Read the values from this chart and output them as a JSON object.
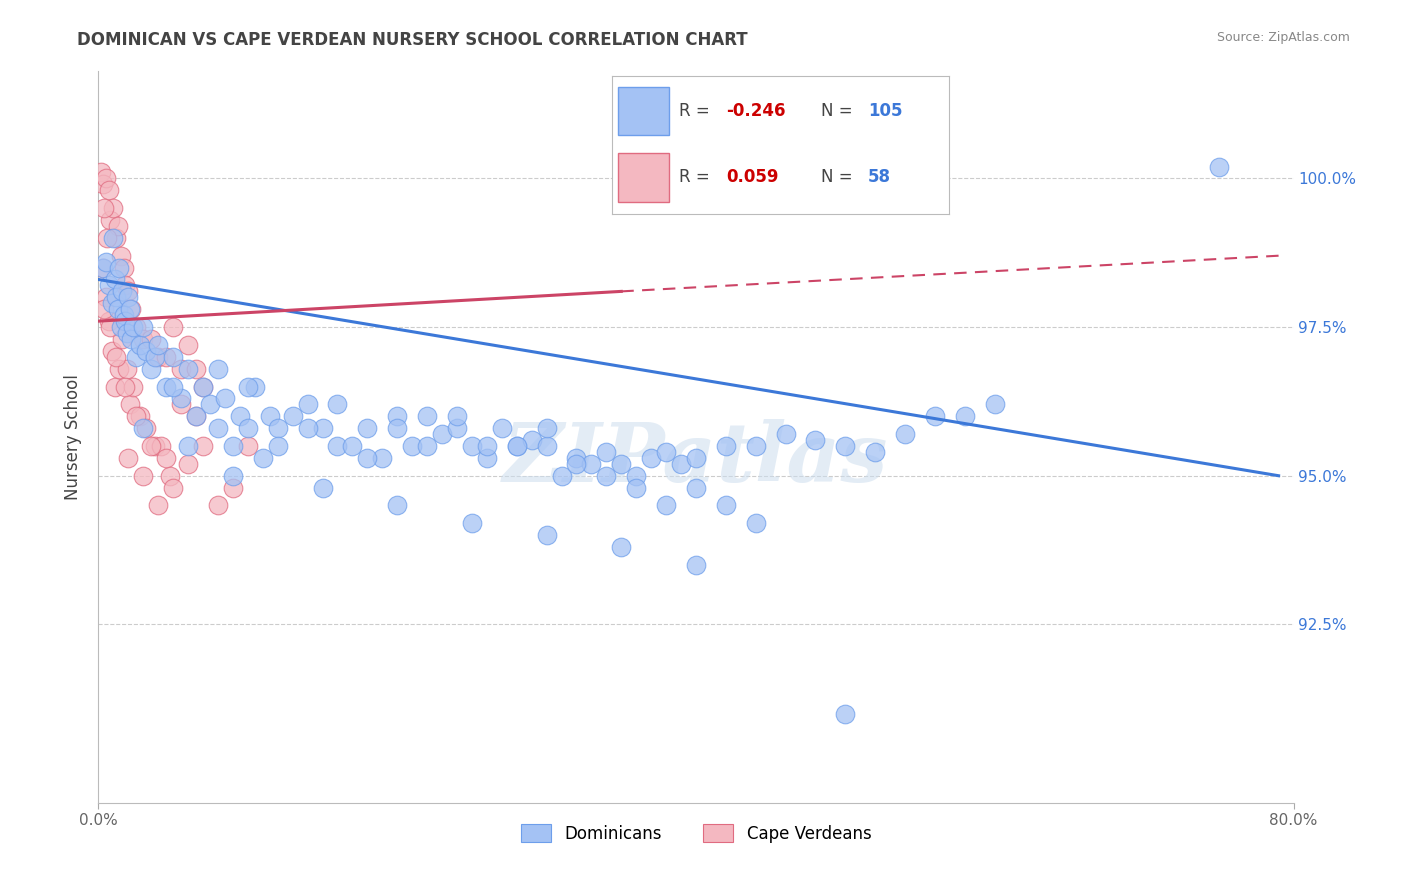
{
  "title": "DOMINICAN VS CAPE VERDEAN NURSERY SCHOOL CORRELATION CHART",
  "source": "Source: ZipAtlas.com",
  "xlabel_blue": "Dominicans",
  "xlabel_pink": "Cape Verdeans",
  "ylabel": "Nursery School",
  "x_min": 0.0,
  "x_max": 80.0,
  "y_min": 89.5,
  "y_max": 101.8,
  "y_ticks": [
    92.5,
    95.0,
    97.5,
    100.0
  ],
  "y_tick_labels": [
    "92.5%",
    "95.0%",
    "97.5%",
    "100.0%"
  ],
  "x_tick_labels": [
    "0.0%",
    "80.0%"
  ],
  "legend_R_blue": "-0.246",
  "legend_N_blue": "105",
  "legend_R_pink": "0.059",
  "legend_N_pink": "58",
  "blue_color": "#a4c2f4",
  "pink_color": "#f4b8c1",
  "blue_edge": "#6d9eeb",
  "pink_edge": "#e06b80",
  "trend_blue_color": "#3c78d8",
  "trend_pink_color": "#cc4466",
  "watermark": "ZIPatlas",
  "blue_trend_x0": 0.0,
  "blue_trend_y0": 98.3,
  "blue_trend_x1": 79.0,
  "blue_trend_y1": 95.0,
  "pink_solid_x0": 0.0,
  "pink_solid_y0": 97.6,
  "pink_solid_x1": 35.0,
  "pink_solid_y1": 98.1,
  "pink_dash_x0": 35.0,
  "pink_dash_y0": 98.1,
  "pink_dash_x1": 79.0,
  "pink_dash_y1": 98.7,
  "blue_dots": [
    [
      0.3,
      98.5
    ],
    [
      0.5,
      98.6
    ],
    [
      0.7,
      98.2
    ],
    [
      0.9,
      97.9
    ],
    [
      1.0,
      99.0
    ],
    [
      1.1,
      98.3
    ],
    [
      1.2,
      98.0
    ],
    [
      1.3,
      97.8
    ],
    [
      1.4,
      98.5
    ],
    [
      1.5,
      97.5
    ],
    [
      1.6,
      98.1
    ],
    [
      1.7,
      97.7
    ],
    [
      1.8,
      97.6
    ],
    [
      1.9,
      97.4
    ],
    [
      2.0,
      98.0
    ],
    [
      2.1,
      97.8
    ],
    [
      2.2,
      97.3
    ],
    [
      2.3,
      97.5
    ],
    [
      2.5,
      97.0
    ],
    [
      2.8,
      97.2
    ],
    [
      3.0,
      97.5
    ],
    [
      3.2,
      97.1
    ],
    [
      3.5,
      96.8
    ],
    [
      3.8,
      97.0
    ],
    [
      4.0,
      97.2
    ],
    [
      4.5,
      96.5
    ],
    [
      5.0,
      97.0
    ],
    [
      5.5,
      96.3
    ],
    [
      6.0,
      96.8
    ],
    [
      6.5,
      96.0
    ],
    [
      7.0,
      96.5
    ],
    [
      7.5,
      96.2
    ],
    [
      8.0,
      95.8
    ],
    [
      8.5,
      96.3
    ],
    [
      9.0,
      95.5
    ],
    [
      9.5,
      96.0
    ],
    [
      10.0,
      95.8
    ],
    [
      10.5,
      96.5
    ],
    [
      11.0,
      95.3
    ],
    [
      11.5,
      96.0
    ],
    [
      12.0,
      95.8
    ],
    [
      13.0,
      96.0
    ],
    [
      14.0,
      96.2
    ],
    [
      15.0,
      95.8
    ],
    [
      16.0,
      95.5
    ],
    [
      17.0,
      95.5
    ],
    [
      18.0,
      95.8
    ],
    [
      19.0,
      95.3
    ],
    [
      20.0,
      96.0
    ],
    [
      21.0,
      95.5
    ],
    [
      22.0,
      96.0
    ],
    [
      23.0,
      95.7
    ],
    [
      24.0,
      95.8
    ],
    [
      25.0,
      95.5
    ],
    [
      26.0,
      95.3
    ],
    [
      27.0,
      95.8
    ],
    [
      28.0,
      95.5
    ],
    [
      29.0,
      95.6
    ],
    [
      30.0,
      95.5
    ],
    [
      31.0,
      95.0
    ],
    [
      32.0,
      95.3
    ],
    [
      33.0,
      95.2
    ],
    [
      34.0,
      95.4
    ],
    [
      35.0,
      95.2
    ],
    [
      36.0,
      95.0
    ],
    [
      37.0,
      95.3
    ],
    [
      38.0,
      95.4
    ],
    [
      39.0,
      95.2
    ],
    [
      40.0,
      95.3
    ],
    [
      42.0,
      95.5
    ],
    [
      44.0,
      95.5
    ],
    [
      46.0,
      95.7
    ],
    [
      48.0,
      95.6
    ],
    [
      50.0,
      95.5
    ],
    [
      52.0,
      95.4
    ],
    [
      54.0,
      95.7
    ],
    [
      56.0,
      96.0
    ],
    [
      58.0,
      96.0
    ],
    [
      60.0,
      96.2
    ],
    [
      5.0,
      96.5
    ],
    [
      8.0,
      96.8
    ],
    [
      10.0,
      96.5
    ],
    [
      12.0,
      95.5
    ],
    [
      14.0,
      95.8
    ],
    [
      16.0,
      96.2
    ],
    [
      18.0,
      95.3
    ],
    [
      20.0,
      95.8
    ],
    [
      22.0,
      95.5
    ],
    [
      24.0,
      96.0
    ],
    [
      26.0,
      95.5
    ],
    [
      28.0,
      95.5
    ],
    [
      30.0,
      95.8
    ],
    [
      32.0,
      95.2
    ],
    [
      34.0,
      95.0
    ],
    [
      36.0,
      94.8
    ],
    [
      38.0,
      94.5
    ],
    [
      40.0,
      94.8
    ],
    [
      42.0,
      94.5
    ],
    [
      44.0,
      94.2
    ],
    [
      3.0,
      95.8
    ],
    [
      6.0,
      95.5
    ],
    [
      9.0,
      95.0
    ],
    [
      15.0,
      94.8
    ],
    [
      20.0,
      94.5
    ],
    [
      25.0,
      94.2
    ],
    [
      30.0,
      94.0
    ],
    [
      35.0,
      93.8
    ],
    [
      40.0,
      93.5
    ],
    [
      50.0,
      91.0
    ],
    [
      75.0,
      100.2
    ]
  ],
  "pink_dots": [
    [
      0.2,
      100.1
    ],
    [
      0.3,
      99.9
    ],
    [
      0.5,
      100.0
    ],
    [
      0.7,
      99.8
    ],
    [
      0.8,
      99.3
    ],
    [
      1.0,
      99.5
    ],
    [
      1.2,
      99.0
    ],
    [
      1.3,
      99.2
    ],
    [
      0.4,
      99.5
    ],
    [
      0.6,
      99.0
    ],
    [
      1.5,
      98.7
    ],
    [
      1.7,
      98.5
    ],
    [
      1.8,
      98.2
    ],
    [
      2.0,
      98.1
    ],
    [
      2.2,
      97.8
    ],
    [
      2.5,
      97.5
    ],
    [
      3.0,
      97.3
    ],
    [
      3.5,
      97.3
    ],
    [
      4.0,
      97.0
    ],
    [
      4.5,
      97.0
    ],
    [
      5.0,
      97.5
    ],
    [
      5.5,
      96.8
    ],
    [
      6.0,
      97.2
    ],
    [
      6.5,
      96.8
    ],
    [
      7.0,
      96.5
    ],
    [
      0.3,
      98.5
    ],
    [
      0.5,
      98.0
    ],
    [
      0.7,
      97.6
    ],
    [
      0.9,
      97.1
    ],
    [
      1.1,
      96.5
    ],
    [
      1.4,
      96.8
    ],
    [
      1.6,
      97.3
    ],
    [
      1.9,
      96.8
    ],
    [
      2.1,
      96.2
    ],
    [
      2.3,
      96.5
    ],
    [
      2.8,
      96.0
    ],
    [
      3.2,
      95.8
    ],
    [
      3.8,
      95.5
    ],
    [
      4.2,
      95.5
    ],
    [
      4.8,
      95.0
    ],
    [
      0.4,
      97.8
    ],
    [
      0.8,
      97.5
    ],
    [
      1.2,
      97.0
    ],
    [
      1.8,
      96.5
    ],
    [
      2.5,
      96.0
    ],
    [
      3.5,
      95.5
    ],
    [
      4.5,
      95.3
    ],
    [
      5.5,
      96.2
    ],
    [
      6.5,
      96.0
    ],
    [
      2.0,
      95.3
    ],
    [
      3.0,
      95.0
    ],
    [
      4.0,
      94.5
    ],
    [
      5.0,
      94.8
    ],
    [
      6.0,
      95.2
    ],
    [
      7.0,
      95.5
    ],
    [
      8.0,
      94.5
    ],
    [
      9.0,
      94.8
    ],
    [
      10.0,
      95.5
    ]
  ]
}
